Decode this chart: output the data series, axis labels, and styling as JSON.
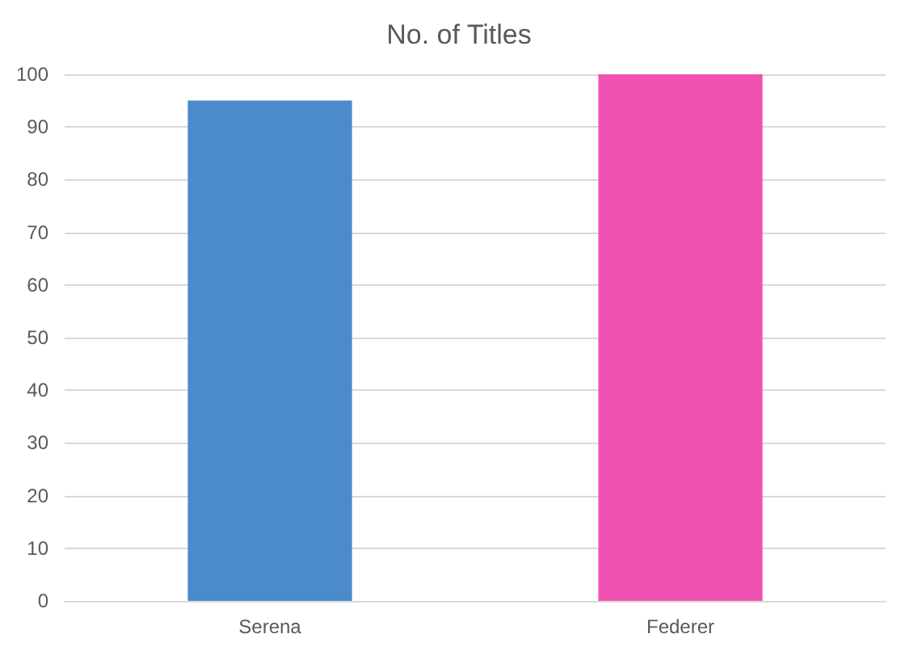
{
  "chart_data": {
    "type": "bar",
    "title": "No. of Titles",
    "categories": [
      "Serena",
      "Federer"
    ],
    "values": [
      95,
      100
    ],
    "colors": [
      "#4b8bcb",
      "#f052b4"
    ],
    "ylim": [
      0,
      100
    ],
    "yticks": [
      0,
      10,
      20,
      30,
      40,
      50,
      60,
      70,
      80,
      90,
      100
    ],
    "grid": "y"
  }
}
